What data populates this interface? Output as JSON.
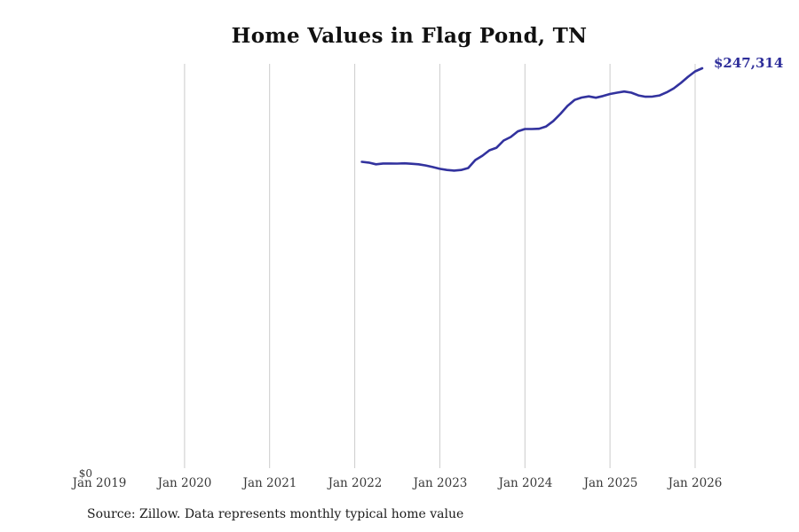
{
  "source_note": "Source: Zillow. Data represents monthly typical home value",
  "colors": {
    "line": "#32329e",
    "end_label_text": "#2e2e9a",
    "grid": "#cccccc",
    "tick_text": "#3a3a3a",
    "title_text": "#111111",
    "source_text": "#1c1c1c",
    "background": "#ffffff"
  },
  "chart_data": {
    "type": "line",
    "title": "Home Values in Flag Pond, TN",
    "xlabel": "",
    "ylabel": "",
    "end_label": "$247,314",
    "latest_value": 247314,
    "ylim": [
      0,
      250000
    ],
    "grid": "vertical gridlines at each January from 2020 through 2026",
    "legend": "none",
    "x_ticks": [
      "Jan 2019",
      "Jan 2020",
      "Jan 2021",
      "Jan 2022",
      "Jan 2023",
      "Jan 2024",
      "Jan 2025",
      "Jan 2026"
    ],
    "gridline_years": [
      2020,
      2021,
      2022,
      2023,
      2024,
      2025,
      2026
    ],
    "y_ticks": [
      "$0"
    ],
    "x": [
      "Feb 2022",
      "Mar 2022",
      "Apr 2022",
      "May 2022",
      "Jun 2022",
      "Jul 2022",
      "Aug 2022",
      "Sep 2022",
      "Oct 2022",
      "Nov 2022",
      "Dec 2022",
      "Jan 2023",
      "Feb 2023",
      "Mar 2023",
      "Apr 2023",
      "May 2023",
      "Jun 2023",
      "Jul 2023",
      "Aug 2023",
      "Sep 2023",
      "Oct 2023",
      "Nov 2023",
      "Dec 2023",
      "Jan 2024",
      "Feb 2024",
      "Mar 2024",
      "Apr 2024",
      "May 2024",
      "Jun 2024",
      "Jul 2024",
      "Aug 2024",
      "Sep 2024",
      "Oct 2024",
      "Nov 2024",
      "Dec 2024",
      "Jan 2025",
      "Feb 2025",
      "Mar 2025",
      "Apr 2025",
      "May 2025",
      "Jun 2025",
      "Jul 2025",
      "Aug 2025",
      "Sep 2025",
      "Oct 2025",
      "Nov 2025",
      "Dec 2025",
      "Jan 2026",
      "Feb 2026"
    ],
    "values": [
      189700,
      189200,
      188200,
      188700,
      188700,
      188600,
      188800,
      188500,
      188200,
      187500,
      186500,
      185400,
      184700,
      184300,
      184700,
      185900,
      190800,
      193500,
      196800,
      198400,
      202800,
      205000,
      208500,
      209900,
      209900,
      210100,
      211500,
      214800,
      219200,
      224100,
      227800,
      229300,
      230000,
      229200,
      230200,
      231500,
      232300,
      233000,
      232300,
      230600,
      229800,
      229900,
      230600,
      232500,
      235000,
      238300,
      242100,
      245400,
      247314
    ]
  }
}
